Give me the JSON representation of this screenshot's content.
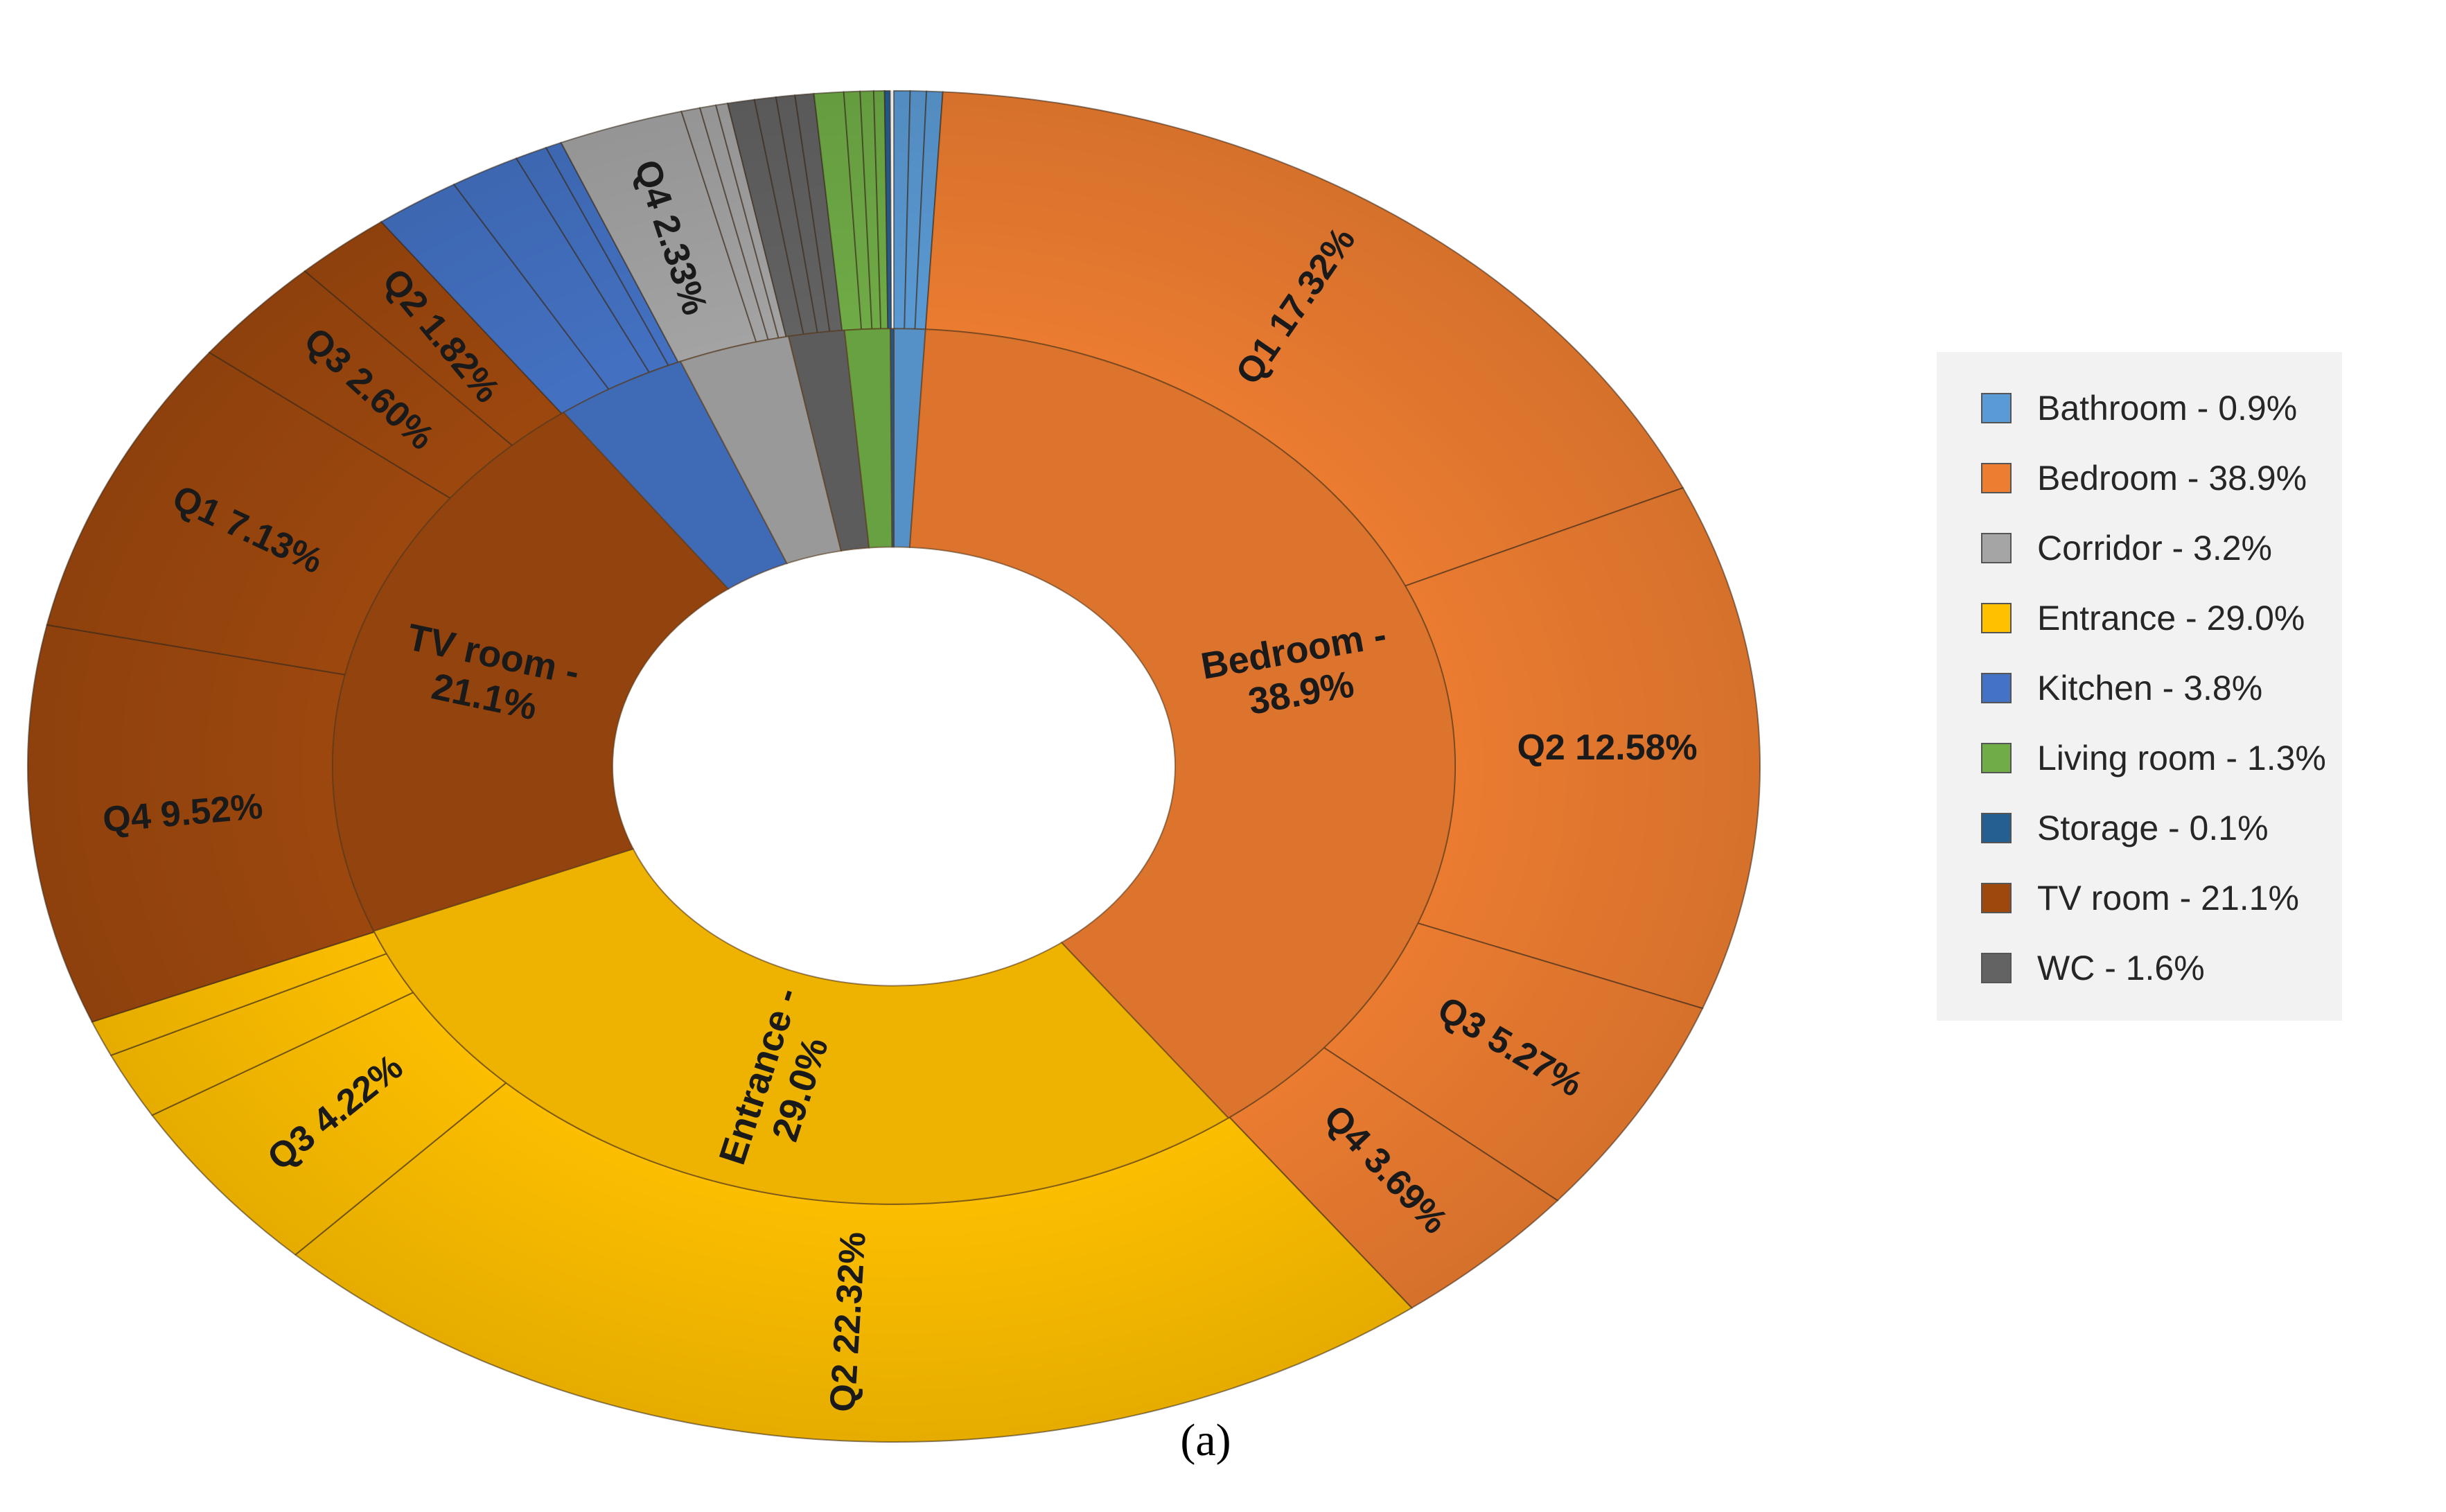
{
  "chart_data": {
    "type": "pie",
    "subtype": "sunburst",
    "caption": "(a)",
    "inner_ring": [
      {
        "name": "Bathroom",
        "value": 0.9,
        "color": "#5b9bd5",
        "label": ""
      },
      {
        "name": "Bedroom",
        "value": 38.9,
        "color": "#ed7d31",
        "label": "Bedroom - 38.9%"
      },
      {
        "name": "Entrance",
        "value": 29.0,
        "color": "#ffc000",
        "label": "Entrance - 29.0%"
      },
      {
        "name": "TV room",
        "value": 21.1,
        "color": "#9e480e",
        "label": "TV room - 21.1%"
      },
      {
        "name": "Kitchen",
        "value": 3.8,
        "color": "#4472c4",
        "label": ""
      },
      {
        "name": "Corridor",
        "value": 3.2,
        "color": "#a5a5a5",
        "label": ""
      },
      {
        "name": "WC",
        "value": 1.6,
        "color": "#636363",
        "label": ""
      },
      {
        "name": "Living room",
        "value": 1.3,
        "color": "#70ad47",
        "label": ""
      },
      {
        "name": "Storage",
        "value": 0.1,
        "color": "#255e91",
        "label": ""
      }
    ],
    "outer_ring": [
      {
        "parent": "Bathroom",
        "value": 0.3,
        "label": ""
      },
      {
        "parent": "Bathroom",
        "value": 0.3,
        "label": ""
      },
      {
        "parent": "Bathroom",
        "value": 0.3,
        "label": ""
      },
      {
        "parent": "Bedroom",
        "value": 17.32,
        "label": "Q1 17.32%"
      },
      {
        "parent": "Bedroom",
        "value": 12.58,
        "label": "Q2 12.58%"
      },
      {
        "parent": "Bedroom",
        "value": 5.27,
        "label": "Q3 5.27%"
      },
      {
        "parent": "Bedroom",
        "value": 3.69,
        "label": "Q4 3.69%"
      },
      {
        "parent": "Entrance",
        "value": 22.32,
        "label": "Q2 22.32%"
      },
      {
        "parent": "Entrance",
        "value": 4.22,
        "label": "Q3 4.22%"
      },
      {
        "parent": "Entrance",
        "value": 1.6,
        "label": ""
      },
      {
        "parent": "Entrance",
        "value": 0.86,
        "label": ""
      },
      {
        "parent": "TV room",
        "value": 9.52,
        "label": "Q4 9.52%"
      },
      {
        "parent": "TV room",
        "value": 7.13,
        "label": "Q1 7.13%"
      },
      {
        "parent": "TV room",
        "value": 2.6,
        "label": "Q3 2.60%"
      },
      {
        "parent": "TV room",
        "value": 1.82,
        "label": "Q2 1.82%"
      },
      {
        "parent": "Kitchen",
        "value": 1.6,
        "label": ""
      },
      {
        "parent": "Kitchen",
        "value": 1.3,
        "label": ""
      },
      {
        "parent": "Kitchen",
        "value": 0.6,
        "label": ""
      },
      {
        "parent": "Kitchen",
        "value": 0.3,
        "label": ""
      },
      {
        "parent": "Corridor",
        "value": 2.33,
        "label": "Q4 2.33%"
      },
      {
        "parent": "Corridor",
        "value": 0.35,
        "label": ""
      },
      {
        "parent": "Corridor",
        "value": 0.3,
        "label": ""
      },
      {
        "parent": "Corridor",
        "value": 0.22,
        "label": ""
      },
      {
        "parent": "WC",
        "value": 0.5,
        "label": ""
      },
      {
        "parent": "WC",
        "value": 0.4,
        "label": ""
      },
      {
        "parent": "WC",
        "value": 0.35,
        "label": ""
      },
      {
        "parent": "WC",
        "value": 0.35,
        "label": ""
      },
      {
        "parent": "Living room",
        "value": 0.55,
        "label": ""
      },
      {
        "parent": "Living room",
        "value": 0.3,
        "label": ""
      },
      {
        "parent": "Living room",
        "value": 0.25,
        "label": ""
      },
      {
        "parent": "Living room",
        "value": 0.2,
        "label": ""
      },
      {
        "parent": "Storage",
        "value": 0.1,
        "label": ""
      }
    ],
    "legend": [
      {
        "label": "Bathroom - 0.9%",
        "color": "#5b9bd5"
      },
      {
        "label": "Bedroom - 38.9%",
        "color": "#ed7d31"
      },
      {
        "label": "Corridor - 3.2%",
        "color": "#a5a5a5"
      },
      {
        "label": "Entrance - 29.0%",
        "color": "#ffc000"
      },
      {
        "label": "Kitchen - 3.8%",
        "color": "#4472c4"
      },
      {
        "label": "Living room - 1.3%",
        "color": "#70ad47"
      },
      {
        "label": "Storage - 0.1%",
        "color": "#255e91"
      },
      {
        "label": "TV room - 21.1%",
        "color": "#9e480e"
      },
      {
        "label": "WC - 1.6%",
        "color": "#636363"
      }
    ]
  }
}
